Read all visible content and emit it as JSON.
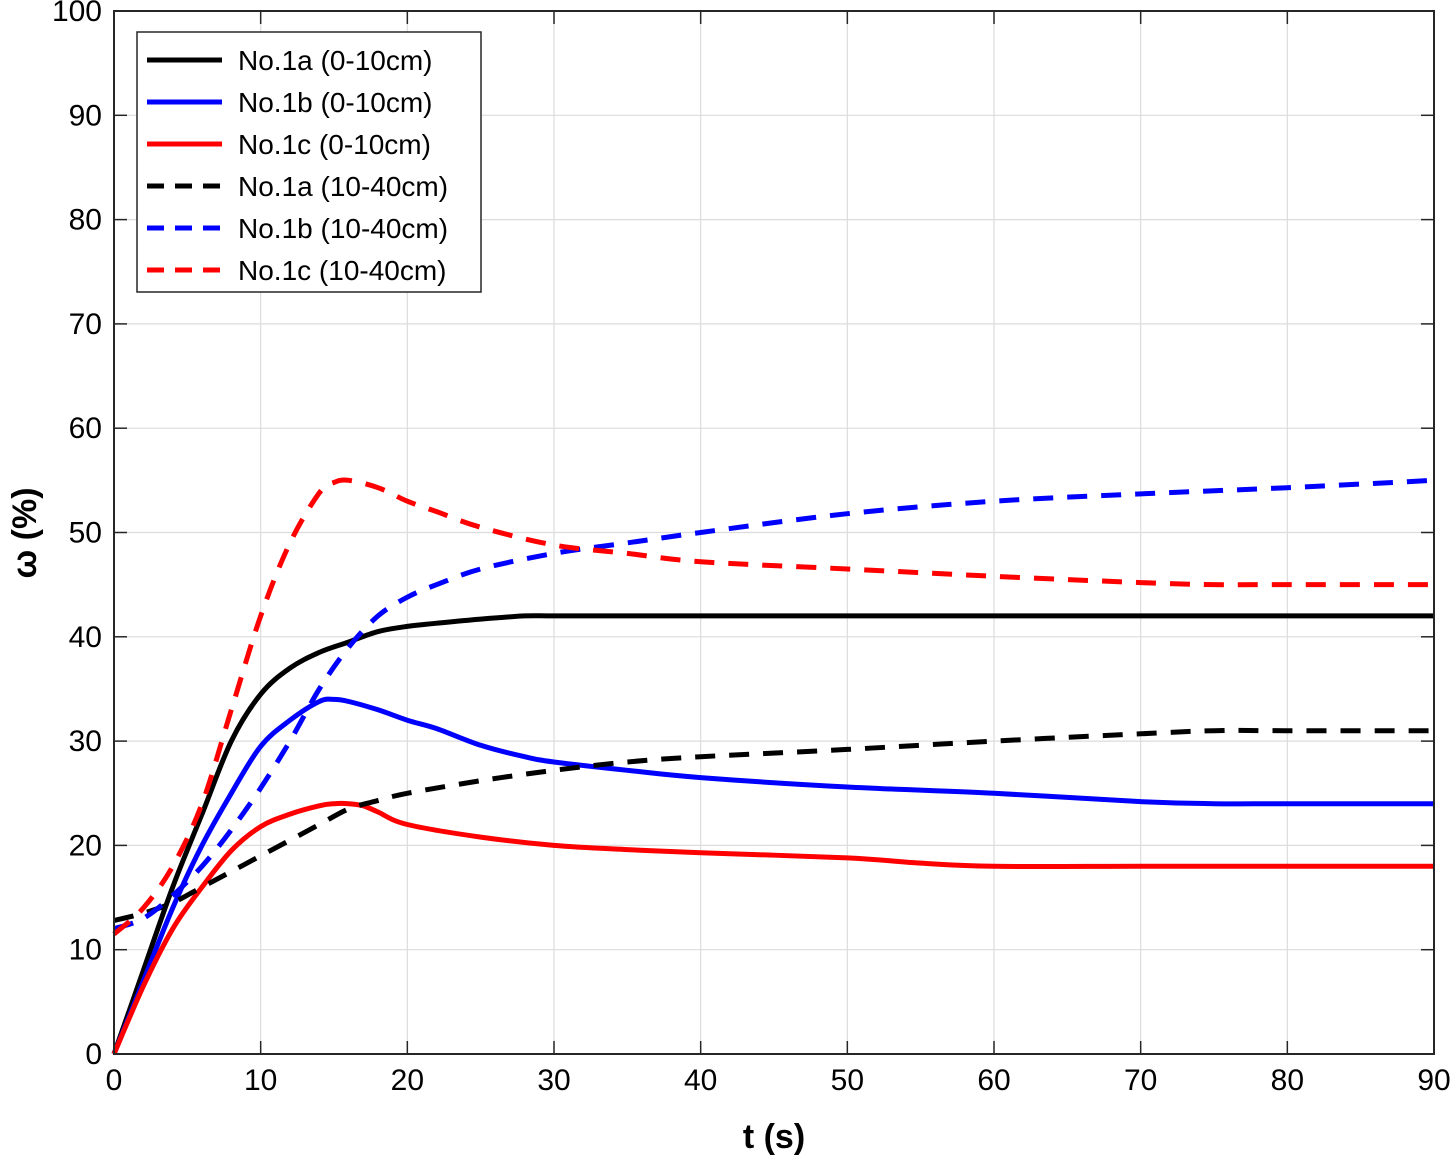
{
  "chart_data": {
    "type": "line",
    "title": "",
    "xlabel": "t (s)",
    "ylabel": "ω (%)",
    "xlim": [
      0,
      90
    ],
    "ylim": [
      0,
      100
    ],
    "xticks": [
      0,
      10,
      20,
      30,
      40,
      50,
      60,
      70,
      80,
      90
    ],
    "yticks": [
      0,
      10,
      20,
      30,
      40,
      50,
      60,
      70,
      80,
      90,
      100
    ],
    "grid": true,
    "legend_position": "top-left",
    "series": [
      {
        "name": "No.1a (0-10cm)",
        "color": "#000000",
        "dash": "solid",
        "x": [
          0,
          2,
          4,
          6,
          8,
          10,
          12,
          14,
          16,
          18,
          20,
          22,
          25,
          28,
          30,
          35,
          40,
          50,
          60,
          70,
          80,
          90
        ],
        "y": [
          0,
          8,
          16,
          23,
          30,
          34.5,
          37,
          38.5,
          39.5,
          40.5,
          41,
          41.3,
          41.7,
          42,
          42,
          42,
          42,
          42,
          42,
          42,
          42,
          42
        ]
      },
      {
        "name": "No.1b (0-10cm)",
        "color": "#0000ff",
        "dash": "solid",
        "x": [
          0,
          2,
          4,
          6,
          8,
          10,
          12,
          14,
          15,
          16,
          18,
          20,
          22,
          25,
          28,
          30,
          35,
          40,
          50,
          60,
          70,
          75,
          80,
          90
        ],
        "y": [
          0,
          7,
          14,
          20,
          25,
          29.5,
          32,
          33.8,
          34,
          33.8,
          33,
          32,
          31.2,
          29.6,
          28.5,
          28,
          27.2,
          26.5,
          25.6,
          25,
          24.2,
          24,
          24,
          24
        ]
      },
      {
        "name": "No.1c (0-10cm)",
        "color": "#ff0000",
        "dash": "solid",
        "x": [
          0,
          2,
          4,
          6,
          8,
          10,
          12,
          14,
          15,
          16,
          17,
          18,
          20,
          25,
          30,
          35,
          40,
          50,
          55,
          60,
          70,
          80,
          90
        ],
        "y": [
          0,
          6.5,
          12,
          16,
          19.5,
          21.8,
          23,
          23.8,
          24,
          24,
          23.8,
          23.2,
          22,
          20.8,
          20,
          19.6,
          19.3,
          18.8,
          18.3,
          18,
          18,
          18,
          18
        ]
      },
      {
        "name": "No.1a (10-40cm)",
        "color": "#000000",
        "dash": "dashed",
        "x": [
          0,
          2,
          4,
          6,
          8,
          10,
          12,
          14,
          16,
          18,
          20,
          25,
          30,
          35,
          40,
          50,
          60,
          70,
          75,
          80,
          90
        ],
        "y": [
          12.8,
          13.5,
          14.5,
          16,
          17.5,
          19,
          20.5,
          22,
          23.5,
          24.3,
          25,
          26.2,
          27.2,
          28,
          28.5,
          29.2,
          30,
          30.7,
          31,
          31,
          31
        ]
      },
      {
        "name": "No.1b (10-40cm)",
        "color": "#0000ff",
        "dash": "dashed",
        "x": [
          0,
          2,
          4,
          6,
          8,
          10,
          12,
          14,
          16,
          18,
          20,
          22,
          25,
          30,
          35,
          40,
          50,
          60,
          70,
          80,
          90
        ],
        "y": [
          12,
          13,
          15.2,
          18,
          21.5,
          25.5,
          30,
          35,
          39,
          42,
          43.8,
          45,
          46.5,
          48,
          49,
          50,
          51.8,
          53,
          53.7,
          54.3,
          55
        ]
      },
      {
        "name": "No.1c (10-40cm)",
        "color": "#ff0000",
        "dash": "dashed",
        "x": [
          0,
          2,
          4,
          6,
          8,
          10,
          12,
          14,
          15,
          16,
          18,
          20,
          22,
          25,
          30,
          35,
          40,
          50,
          60,
          70,
          75,
          80,
          90
        ],
        "y": [
          11.5,
          14,
          18,
          24,
          33,
          42,
          49,
          53.8,
          54.8,
          55,
          54.3,
          53,
          52,
          50.5,
          48.8,
          48,
          47.2,
          46.5,
          45.8,
          45.2,
          45,
          45,
          45
        ]
      }
    ]
  }
}
